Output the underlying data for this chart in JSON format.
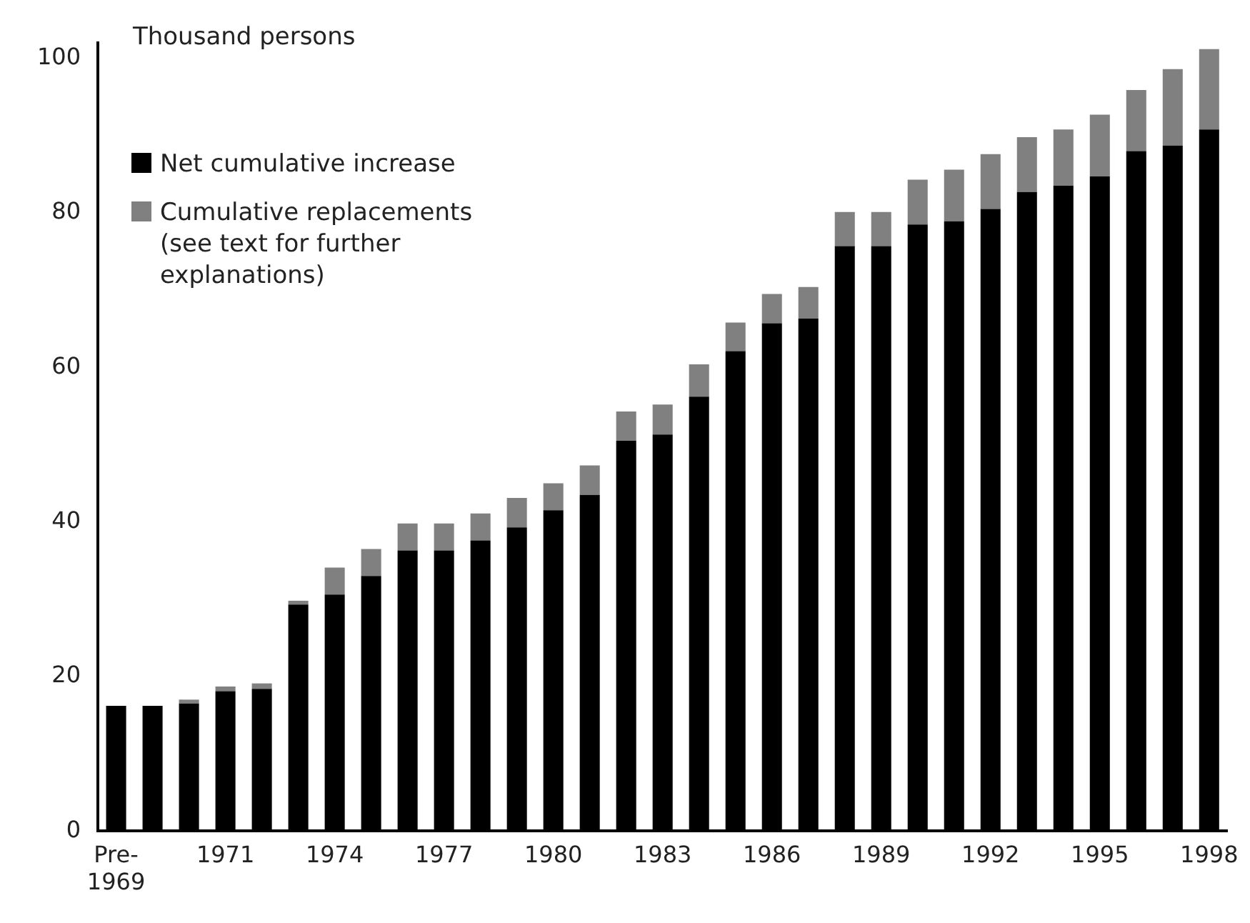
{
  "chart_data": {
    "type": "bar",
    "ylabel": "Thousand persons",
    "stacked": true,
    "grid": false,
    "legend": "top left",
    "categories": [
      "Pre-1969",
      null,
      null,
      "1971",
      null,
      null,
      "1974",
      null,
      null,
      "1977",
      null,
      null,
      "1980",
      null,
      null,
      "1983",
      null,
      null,
      "1986",
      null,
      null,
      "1989",
      null,
      null,
      "1992",
      null,
      null,
      "1995",
      null,
      null,
      "1998"
    ],
    "series": [
      {
        "name": "Net cumulative increase",
        "color": "#000000",
        "values": [
          16.2,
          16.2,
          16.5,
          18.1,
          18.4,
          29.3,
          30.6,
          33.0,
          36.3,
          36.3,
          37.6,
          39.3,
          41.5,
          43.5,
          50.5,
          51.3,
          56.2,
          62.1,
          65.7,
          66.3,
          75.7,
          75.7,
          78.5,
          78.9,
          80.5,
          82.7,
          83.5,
          84.7,
          88.0,
          88.7,
          90.8
        ]
      },
      {
        "name": "Cumulative replacements (see text for further explanations)",
        "color": "#808080",
        "values": [
          0,
          0,
          0.5,
          0.6,
          0.7,
          0.5,
          3.5,
          3.5,
          3.5,
          3.5,
          3.5,
          3.8,
          3.5,
          3.8,
          3.8,
          3.9,
          4.2,
          3.7,
          3.8,
          4.1,
          4.4,
          4.4,
          5.8,
          6.7,
          7.1,
          7.1,
          7.3,
          8.0,
          7.9,
          9.9,
          10.4
        ]
      }
    ],
    "ylim": [
      0,
      102
    ],
    "yticks": [
      0,
      20,
      40,
      60,
      80,
      100
    ]
  }
}
